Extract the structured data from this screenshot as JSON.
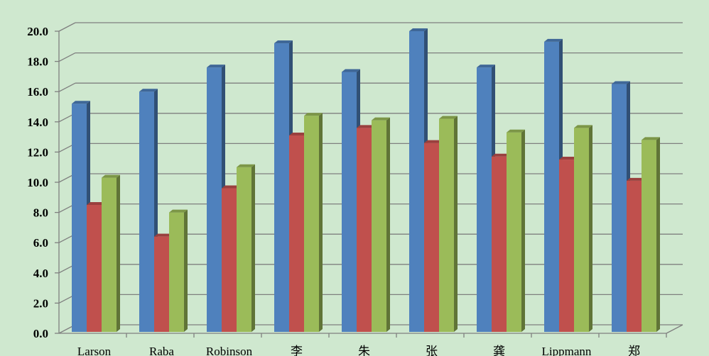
{
  "chart_data": {
    "type": "bar",
    "style": "3d-clustered-column",
    "categories": [
      "Larson",
      "Raba",
      "Robinson",
      "李",
      "朱",
      "张",
      "龚",
      "Lippmann",
      "郑"
    ],
    "series": [
      {
        "color": "#4f81bd",
        "values": [
          15.2,
          16.0,
          17.6,
          19.2,
          17.3,
          20.0,
          17.6,
          19.3,
          16.5
        ]
      },
      {
        "color": "#c0504d",
        "values": [
          8.5,
          6.4,
          9.6,
          13.1,
          13.6,
          12.6,
          11.7,
          11.5,
          10.1
        ]
      },
      {
        "color": "#9bbb59",
        "values": [
          10.3,
          8.0,
          11.0,
          14.4,
          14.1,
          14.2,
          13.3,
          13.6,
          12.8
        ]
      }
    ],
    "yticks": [
      "0.0",
      "2.0",
      "4.0",
      "6.0",
      "8.0",
      "10.0",
      "12.0",
      "14.0",
      "16.0",
      "18.0",
      "20.0"
    ],
    "ylim": [
      0,
      20
    ],
    "grid": true,
    "legend": "none",
    "title": "",
    "xlabel": "",
    "ylabel": "",
    "colors": {
      "background": "#cfe8cf",
      "gridline": "#7f7f7f"
    }
  }
}
